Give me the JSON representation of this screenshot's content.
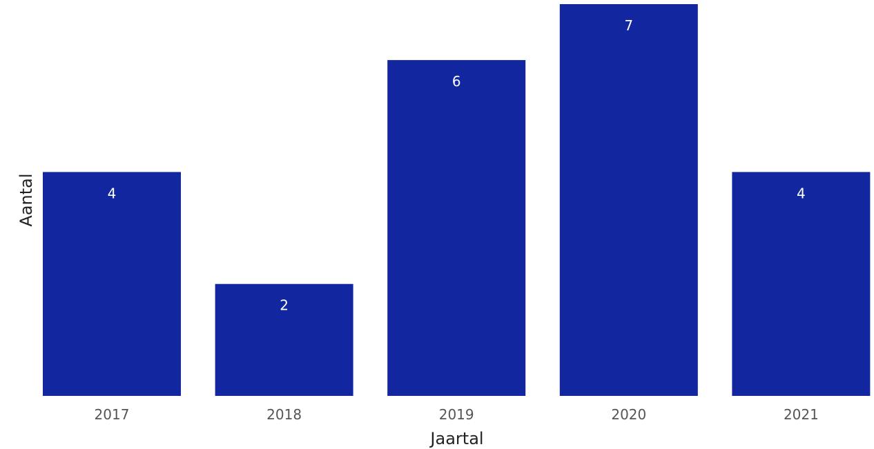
{
  "chart_data": {
    "type": "bar",
    "categories": [
      "2017",
      "2018",
      "2019",
      "2020",
      "2021"
    ],
    "values": [
      4,
      2,
      6,
      7,
      4
    ],
    "title": "",
    "xlabel": "Jaartal",
    "ylabel": "Aantal",
    "ylim": [
      0,
      7
    ],
    "grid": false,
    "data_labels": "inside-top",
    "bar_color": "#1226a0"
  }
}
